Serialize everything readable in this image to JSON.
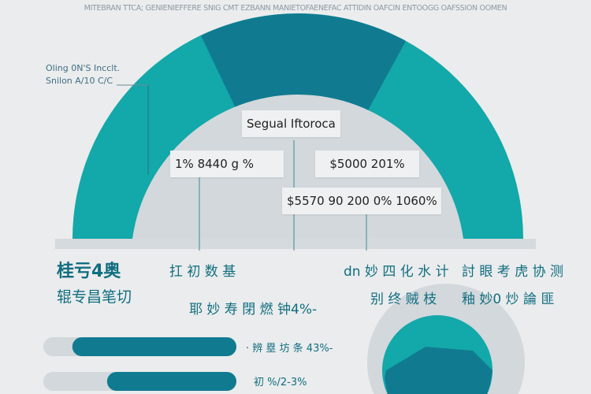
{
  "subtitle": "MITEBRAN TTCA; GENIENIEFFERE SNIG CMT EZBANN MANIETOFAENEFAC ATTIDIN OAFCIN ENTOOGG OAFSSION OOMEN",
  "side_note": {
    "line1": "Oling 0N'S Incclt.",
    "line2": "Snilon A/10 C/C"
  },
  "colors": {
    "teal": "#13a8a9",
    "dark_teal": "#107b90",
    "gray": "#d2d8dc",
    "background": "#ebeced"
  },
  "callouts": {
    "title": "Segual Iftoroca",
    "left": "1%   8440 g  %",
    "right": "$5000 201%",
    "bottom": "$5570 90 200 0% 1060%"
  },
  "labels": {
    "left_top": "桂亏4奥",
    "left_bottom": "辊专昌笔切",
    "mid_left": "扛 初 数 基",
    "center": "耶 妙 寿 閉 燃 钟4%-",
    "mid_right_top": "dn 妙 四 化 水 计",
    "mid_right_bottom": "别 终 贼 枝",
    "right_top": "討 眼 考 虎 协 测",
    "right_bottom": "釉 妙0 炒 論 匪"
  },
  "bars": [
    {
      "label": "· 辨 塁 坊 条 43%-",
      "progress": 0.85
    },
    {
      "label": "初 %/2-3%",
      "progress": 0.67
    }
  ]
}
